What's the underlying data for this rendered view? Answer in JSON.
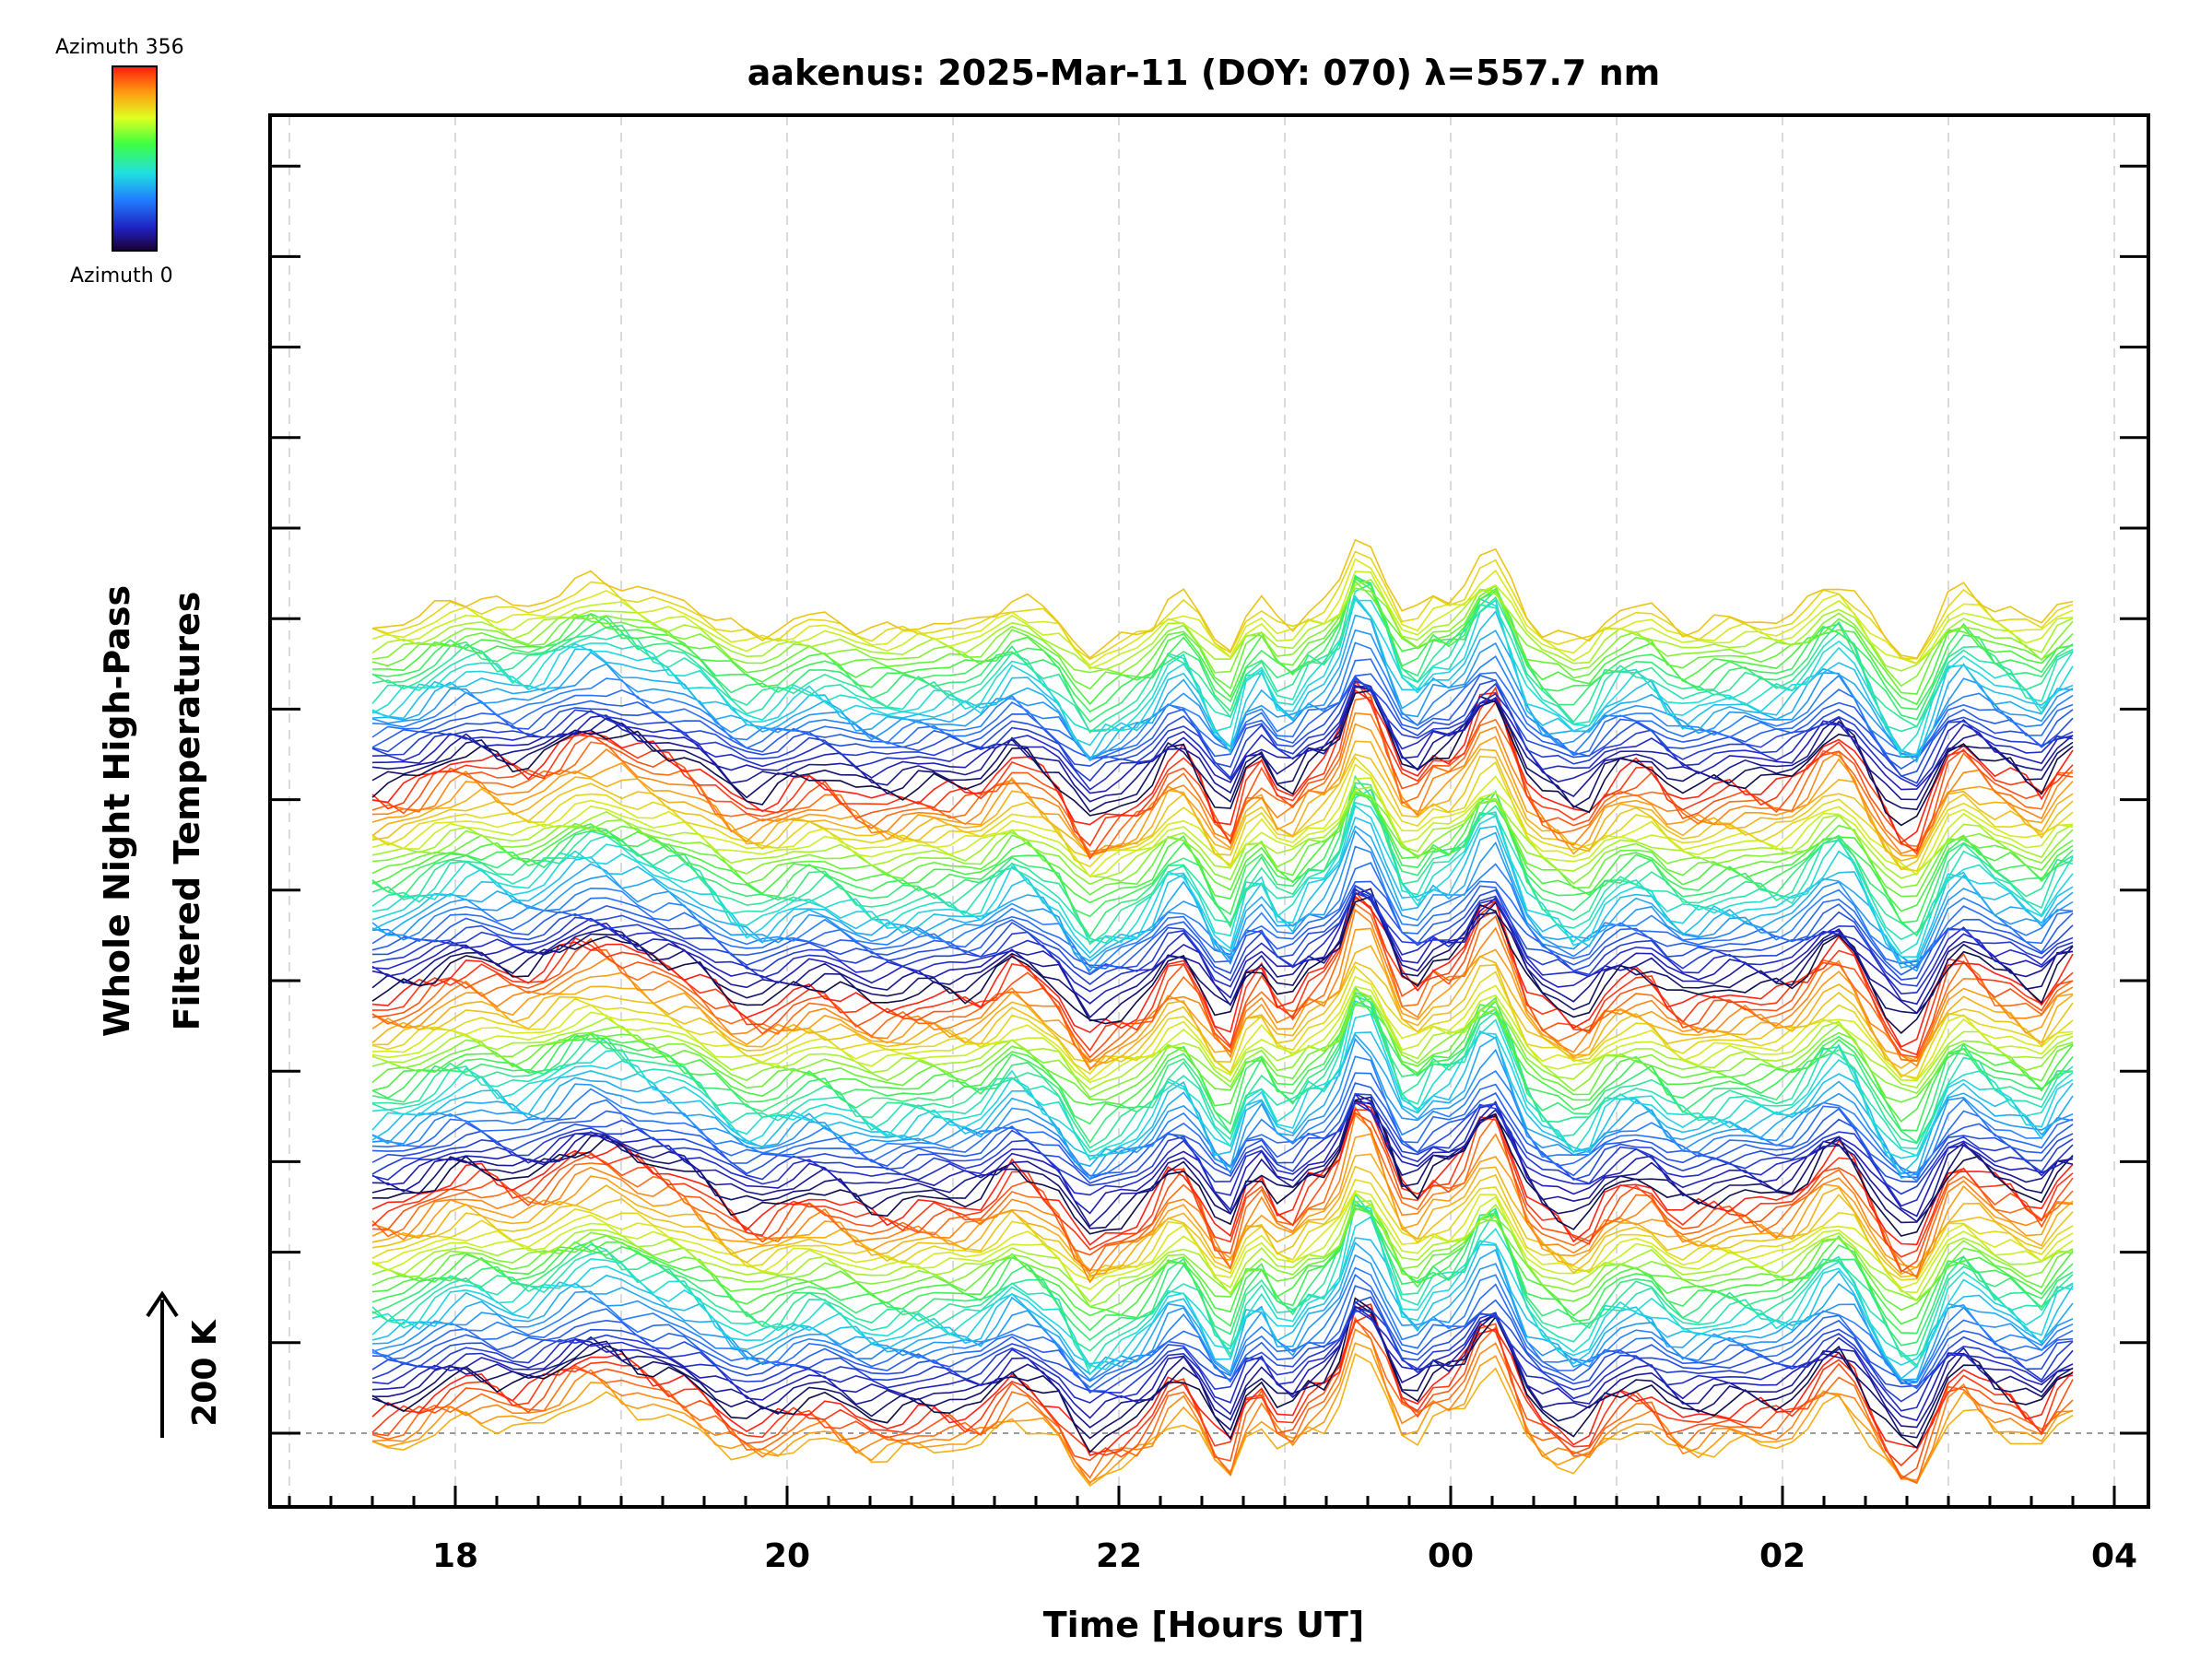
{
  "chart_data": {
    "type": "line",
    "title": "aakenus: 2025-Mar-11 (DOY: 070) λ=557.7 nm",
    "xlabel": "Time [Hours UT]",
    "ylabel_line1": "Whole Night High-Pass",
    "ylabel_line2": "Filtered Temperatures",
    "x_tick_labels": [
      "18",
      "20",
      "22",
      "00",
      "02",
      "04"
    ],
    "x_tick_hours": [
      18,
      20,
      22,
      24,
      26,
      28
    ],
    "xlim_hours": [
      16.9,
      28.2
    ],
    "data_start_hour": 17.5,
    "data_end_hour": 27.75,
    "samples_per_trace": 110,
    "trace_count": 136,
    "scale_bar_label": "200 K",
    "colorbar": {
      "top_label": "Azimuth  356",
      "bottom_label": "Azimuth  0",
      "min_azimuth": 0,
      "max_azimuth": 356,
      "colormap": "rainbow"
    },
    "feature_events_hours": [
      {
        "t": 21.35,
        "amp": 0.35,
        "w": 0.12
      },
      {
        "t": 21.8,
        "amp": -0.4,
        "w": 0.1
      },
      {
        "t": 22.35,
        "amp": 0.6,
        "w": 0.12
      },
      {
        "t": 22.65,
        "amp": -0.9,
        "w": 0.1
      },
      {
        "t": 23.0,
        "amp": -0.7,
        "w": 0.1
      },
      {
        "t": 23.45,
        "amp": 1.1,
        "w": 0.11
      },
      {
        "t": 23.75,
        "amp": -0.8,
        "w": 0.1
      },
      {
        "t": 24.25,
        "amp": 1.35,
        "w": 0.16
      },
      {
        "t": 24.8,
        "amp": -0.45,
        "w": 0.12
      },
      {
        "t": 25.2,
        "amp": 0.3,
        "w": 0.12
      },
      {
        "t": 26.35,
        "amp": 0.8,
        "w": 0.2
      },
      {
        "t": 26.8,
        "amp": -0.35,
        "w": 0.12
      },
      {
        "t": 27.05,
        "amp": 0.7,
        "w": 0.18
      },
      {
        "t": 27.55,
        "amp": -0.5,
        "w": 0.1
      }
    ]
  }
}
